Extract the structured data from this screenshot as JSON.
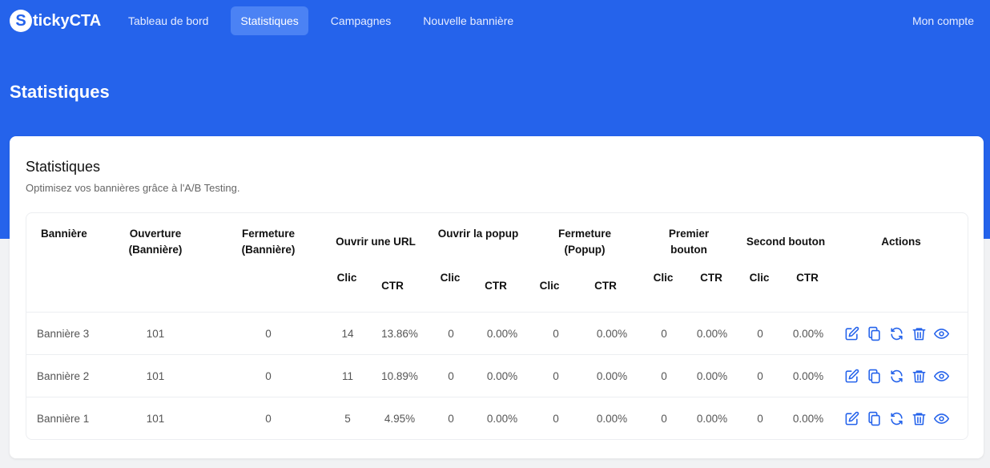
{
  "brand": {
    "badge": "S",
    "name": "tickyCTA"
  },
  "nav": {
    "items": [
      {
        "label": "Tableau de bord",
        "active": false
      },
      {
        "label": "Statistiques",
        "active": true
      },
      {
        "label": "Campagnes",
        "active": false
      },
      {
        "label": "Nouvelle bannière",
        "active": false
      }
    ],
    "account": "Mon compte"
  },
  "page": {
    "title": "Statistiques"
  },
  "card": {
    "title": "Statistiques",
    "subtitle": "Optimisez vos bannières grâce à l'A/B Testing."
  },
  "table": {
    "headers": {
      "banner": "Bannière",
      "opening_1": "Ouverture",
      "opening_2": "(Bannière)",
      "closing_1": "Fermeture",
      "closing_2": "(Bannière)",
      "open_url": "Ouvrir une URL",
      "open_popup": "Ouvrir la popup",
      "popup_close_1": "Fermeture",
      "popup_close_2": "(Popup)",
      "first_button_1": "Premier",
      "first_button_2": "bouton",
      "second_button": "Second bouton",
      "actions": "Actions",
      "click": "Clic",
      "ctr": "CTR"
    },
    "rows": [
      {
        "name": "Bannière 3",
        "opening": "101",
        "closing": "0",
        "url_click": "14",
        "url_ctr": "13.86%",
        "popup_click": "0",
        "popup_ctr": "0.00%",
        "popclose_click": "0",
        "popclose_ctr": "0.00%",
        "b1_click": "0",
        "b1_ctr": "0.00%",
        "b2_click": "0",
        "b2_ctr": "0.00%"
      },
      {
        "name": "Bannière 2",
        "opening": "101",
        "closing": "0",
        "url_click": "11",
        "url_ctr": "10.89%",
        "popup_click": "0",
        "popup_ctr": "0.00%",
        "popclose_click": "0",
        "popclose_ctr": "0.00%",
        "b1_click": "0",
        "b1_ctr": "0.00%",
        "b2_click": "0",
        "b2_ctr": "0.00%"
      },
      {
        "name": "Bannière 1",
        "opening": "101",
        "closing": "0",
        "url_click": "5",
        "url_ctr": "4.95%",
        "popup_click": "0",
        "popup_ctr": "0.00%",
        "popclose_click": "0",
        "popclose_ctr": "0.00%",
        "b1_click": "0",
        "b1_ctr": "0.00%",
        "b2_click": "0",
        "b2_ctr": "0.00%"
      }
    ],
    "action_icons": [
      "edit-icon",
      "duplicate-icon",
      "refresh-icon",
      "trash-icon",
      "eye-icon"
    ]
  },
  "colors": {
    "primary": "#2563eb",
    "nav_active": "#4b82f4",
    "icon": "#2563eb"
  }
}
